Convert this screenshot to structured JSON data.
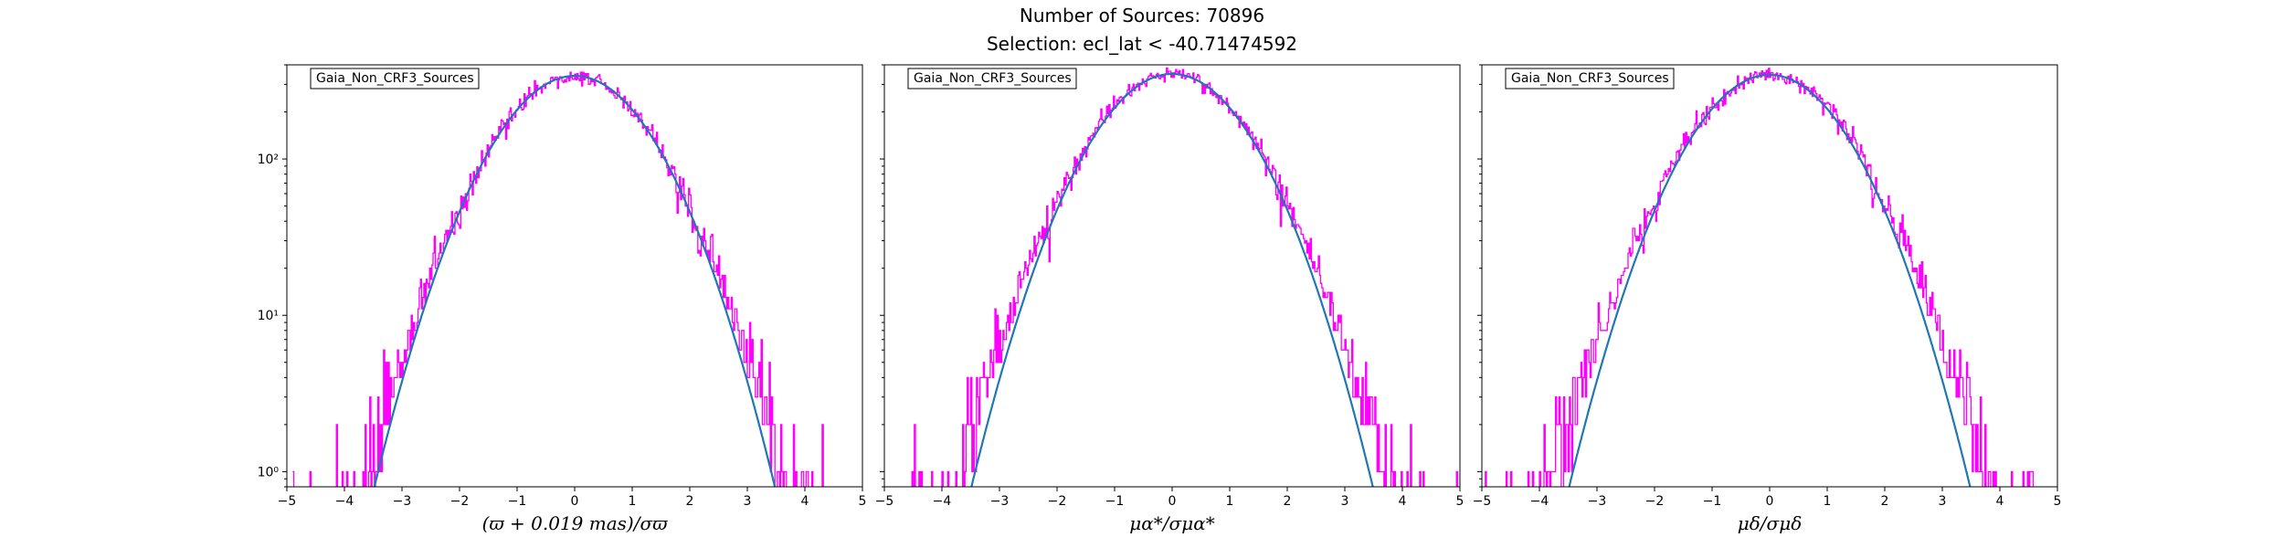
{
  "figure": {
    "title_line1": "Number of Sources: 70896",
    "title_line2": "Selection: ecl_lat < -40.71474592"
  },
  "colors": {
    "histogram": "#ff00ff",
    "fit_curve": "#1f77b4",
    "axes": "#000000"
  },
  "chart_data": [
    {
      "type": "line",
      "legend": "Gaia_Non_CRF3_Sources",
      "xlabel": "(ϖ + 0.019 mas)/σϖ",
      "xlim": [
        -5,
        5
      ],
      "ylim": [
        0.8,
        400
      ],
      "yscale": "log",
      "x_ticks": [
        "−5",
        "−4",
        "−3",
        "−2",
        "−1",
        "0",
        "1",
        "2",
        "3",
        "4",
        "5"
      ],
      "y_ticks": [
        "10⁰",
        "10¹",
        "10²"
      ],
      "peak": 340,
      "series": [
        {
          "kind": "histogram",
          "x_range": [
            -4.9,
            4.5
          ],
          "sigma": 1.0
        },
        {
          "kind": "gaussian_fit",
          "amplitude": 340,
          "mean": 0.0,
          "sigma": 1.0
        }
      ]
    },
    {
      "type": "line",
      "legend": "Gaia_Non_CRF3_Sources",
      "xlabel": "μα*/σμα*",
      "xlim": [
        -5,
        5
      ],
      "ylim": [
        0.8,
        400
      ],
      "yscale": "log",
      "x_ticks": [
        "−5",
        "−4",
        "−3",
        "−2",
        "−1",
        "0",
        "1",
        "2",
        "3",
        "4",
        "5"
      ],
      "y_ticks": [
        "10⁰",
        "10¹",
        "10²"
      ],
      "peak": 350,
      "series": [
        {
          "kind": "histogram",
          "x_range": [
            -4.9,
            5.0
          ],
          "sigma": 1.02
        },
        {
          "kind": "gaussian_fit",
          "amplitude": 350,
          "mean": 0.0,
          "sigma": 1.0
        }
      ]
    },
    {
      "type": "line",
      "legend": "Gaia_Non_CRF3_Sources",
      "xlabel": "μδ/σμδ",
      "xlim": [
        -5,
        5
      ],
      "ylim": [
        0.8,
        400
      ],
      "yscale": "log",
      "x_ticks": [
        "−5",
        "−4",
        "−3",
        "−2",
        "−1",
        "0",
        "1",
        "2",
        "3",
        "4",
        "5"
      ],
      "y_ticks": [
        "10⁰",
        "10¹",
        "10²"
      ],
      "peak": 345,
      "series": [
        {
          "kind": "histogram",
          "x_range": [
            -5.0,
            4.7
          ],
          "sigma": 1.03
        },
        {
          "kind": "gaussian_fit",
          "amplitude": 345,
          "mean": 0.0,
          "sigma": 1.0
        }
      ]
    }
  ]
}
